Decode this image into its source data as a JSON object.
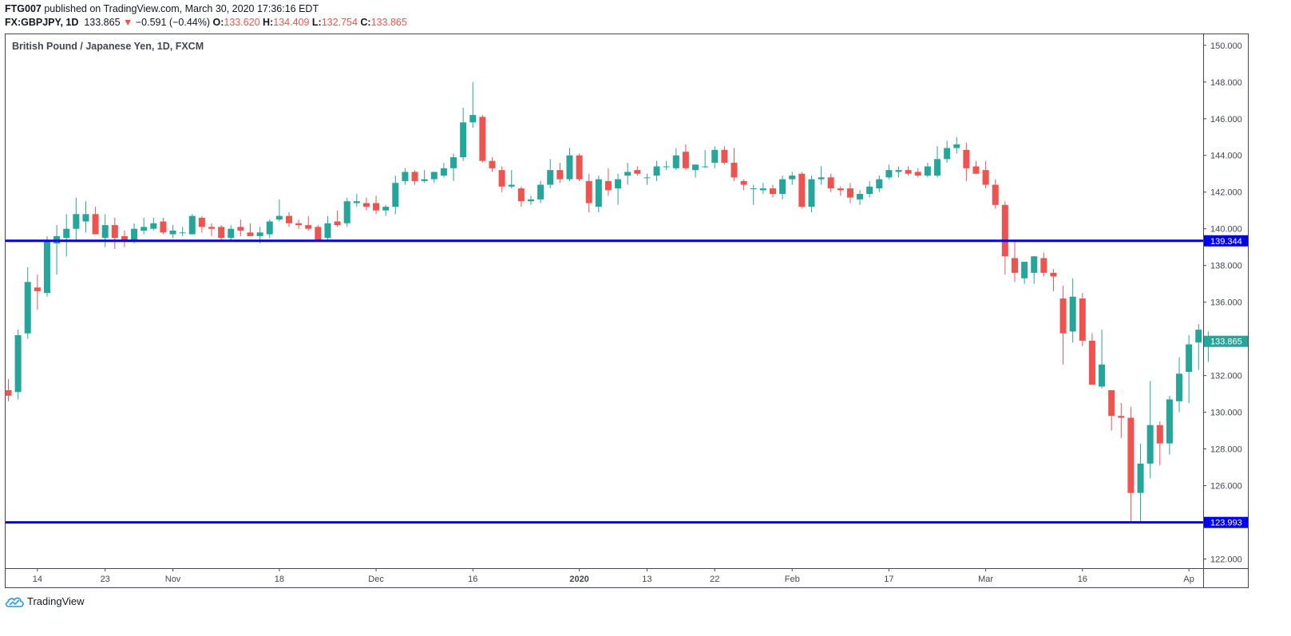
{
  "header": {
    "author": "FTG007",
    "published_text": "published on TradingView.com, March 30, 2020 17:36:16 EDT",
    "symbol": "FX:GBPJPY, 1D",
    "last": "133.865",
    "change_arrow": "▼",
    "change": "−0.591 (−0.44%)",
    "o_label": "O:",
    "o_value": "133.620",
    "h_label": "H:",
    "h_value": "134.409",
    "l_label": "L:",
    "l_value": "132.754",
    "c_label": "C:",
    "c_value": "133.865"
  },
  "footer": {
    "brand": "TradingView",
    "logo_icon": "tradingview-cloud-icon"
  },
  "colors": {
    "up": "#26a69a",
    "down": "#ef5350",
    "level_line": "#0000ee",
    "axis_text": "#434651"
  },
  "chart_data": {
    "type": "candlestick",
    "title": "British Pound / Japanese Yen, 1D, FXCM",
    "ylim": [
      121.5,
      150.6
    ],
    "y_ticks": [
      "122.000",
      "124.000",
      "126.000",
      "128.000",
      "130.000",
      "132.000",
      "134.000",
      "136.000",
      "138.000",
      "140.000",
      "142.000",
      "144.000",
      "146.000",
      "148.000",
      "150.000"
    ],
    "x_labels": [
      {
        "label": "14",
        "index": 3
      },
      {
        "label": "23",
        "index": 10
      },
      {
        "label": "Nov",
        "index": 17
      },
      {
        "label": "18",
        "index": 28
      },
      {
        "label": "Dec",
        "index": 38
      },
      {
        "label": "16",
        "index": 48
      },
      {
        "label": "2020",
        "index": 59,
        "bold": true
      },
      {
        "label": "13",
        "index": 66
      },
      {
        "label": "22",
        "index": 73
      },
      {
        "label": "Feb",
        "index": 81
      },
      {
        "label": "17",
        "index": 91
      },
      {
        "label": "Mar",
        "index": 101
      },
      {
        "label": "16",
        "index": 111
      },
      {
        "label": "Ap",
        "index": 122
      }
    ],
    "levels": [
      {
        "value": 139.344,
        "label": "139.344"
      },
      {
        "value": 123.993,
        "label": "123.993"
      }
    ],
    "last_price": {
      "value": 133.865,
      "label": "133.865"
    },
    "candles": [
      [
        131.2,
        131.8,
        130.6,
        130.9
      ],
      [
        131.1,
        134.5,
        130.7,
        134.2
      ],
      [
        134.3,
        137.9,
        134.0,
        137.1
      ],
      [
        136.8,
        137.5,
        135.6,
        136.6
      ],
      [
        136.5,
        139.6,
        136.3,
        139.3
      ],
      [
        139.2,
        140.2,
        137.5,
        139.6
      ],
      [
        139.5,
        140.8,
        138.5,
        140.0
      ],
      [
        140.0,
        141.7,
        139.3,
        140.8
      ],
      [
        140.4,
        141.5,
        139.8,
        140.8
      ],
      [
        140.8,
        141.2,
        139.7,
        139.7
      ],
      [
        139.5,
        140.8,
        139.0,
        140.2
      ],
      [
        140.2,
        140.6,
        138.9,
        139.5
      ],
      [
        139.6,
        139.9,
        139.0,
        139.3
      ],
      [
        139.3,
        140.3,
        139.2,
        140.0
      ],
      [
        139.9,
        140.6,
        139.7,
        140.1
      ],
      [
        140.0,
        140.6,
        139.9,
        140.3
      ],
      [
        140.4,
        140.6,
        139.7,
        139.8
      ],
      [
        139.7,
        140.2,
        139.5,
        139.9
      ],
      [
        139.8,
        140.1,
        139.6,
        139.8
      ],
      [
        139.7,
        140.8,
        139.7,
        140.7
      ],
      [
        140.6,
        140.7,
        139.8,
        140.1
      ],
      [
        140.1,
        140.3,
        139.6,
        140.0
      ],
      [
        140.1,
        140.2,
        139.4,
        139.5
      ],
      [
        139.5,
        140.2,
        139.4,
        140.0
      ],
      [
        140.1,
        140.5,
        139.6,
        139.9
      ],
      [
        139.8,
        140.3,
        139.6,
        139.6
      ],
      [
        139.6,
        140.1,
        139.2,
        139.8
      ],
      [
        139.7,
        140.5,
        139.5,
        140.4
      ],
      [
        140.5,
        141.6,
        140.4,
        140.7
      ],
      [
        140.7,
        140.9,
        140.1,
        140.3
      ],
      [
        140.3,
        140.5,
        140.0,
        140.2
      ],
      [
        140.2,
        140.7,
        139.9,
        140.0
      ],
      [
        140.1,
        140.2,
        139.3,
        139.4
      ],
      [
        139.5,
        140.7,
        139.4,
        140.3
      ],
      [
        140.4,
        141.0,
        140.1,
        140.2
      ],
      [
        140.3,
        141.7,
        140.1,
        141.5
      ],
      [
        141.4,
        141.9,
        141.2,
        141.5
      ],
      [
        141.4,
        141.7,
        141.0,
        141.2
      ],
      [
        141.4,
        141.8,
        140.8,
        141.0
      ],
      [
        141.0,
        141.3,
        140.7,
        141.2
      ],
      [
        141.2,
        142.9,
        140.8,
        142.5
      ],
      [
        142.6,
        143.3,
        142.4,
        143.1
      ],
      [
        143.1,
        143.2,
        142.4,
        142.6
      ],
      [
        142.6,
        143.2,
        142.5,
        142.7
      ],
      [
        142.7,
        143.1,
        142.5,
        143.1
      ],
      [
        142.9,
        143.6,
        142.8,
        143.3
      ],
      [
        143.3,
        144.1,
        142.6,
        143.9
      ],
      [
        143.9,
        146.6,
        143.7,
        145.8
      ],
      [
        145.8,
        148.0,
        145.5,
        146.2
      ],
      [
        146.1,
        146.2,
        143.6,
        143.7
      ],
      [
        143.7,
        143.9,
        143.1,
        143.3
      ],
      [
        143.2,
        143.4,
        142.0,
        142.3
      ],
      [
        142.3,
        143.2,
        142.2,
        142.4
      ],
      [
        142.2,
        142.3,
        141.2,
        141.5
      ],
      [
        141.5,
        141.8,
        141.3,
        141.6
      ],
      [
        141.6,
        142.6,
        141.4,
        142.4
      ],
      [
        142.4,
        143.8,
        142.2,
        143.2
      ],
      [
        143.2,
        143.6,
        142.5,
        142.7
      ],
      [
        142.7,
        144.4,
        142.6,
        144.0
      ],
      [
        144.0,
        144.1,
        142.6,
        142.7
      ],
      [
        142.6,
        143.0,
        140.9,
        141.4
      ],
      [
        141.2,
        142.9,
        140.9,
        142.7
      ],
      [
        142.6,
        143.3,
        141.8,
        142.1
      ],
      [
        142.2,
        143.0,
        141.3,
        142.7
      ],
      [
        142.9,
        143.6,
        142.4,
        143.1
      ],
      [
        143.2,
        143.4,
        142.9,
        143.0
      ],
      [
        142.8,
        143.0,
        142.4,
        142.8
      ],
      [
        142.9,
        143.7,
        142.6,
        143.4
      ],
      [
        143.4,
        143.7,
        143.2,
        143.4
      ],
      [
        143.3,
        144.4,
        143.2,
        144.0
      ],
      [
        144.2,
        144.6,
        143.2,
        143.3
      ],
      [
        143.2,
        143.5,
        142.8,
        143.5
      ],
      [
        143.4,
        144.3,
        143.3,
        143.4
      ],
      [
        143.6,
        144.5,
        143.3,
        144.3
      ],
      [
        144.3,
        144.5,
        143.5,
        143.6
      ],
      [
        143.6,
        144.4,
        142.6,
        142.8
      ],
      [
        142.6,
        142.7,
        142.1,
        142.4
      ],
      [
        142.2,
        142.4,
        141.3,
        142.2
      ],
      [
        142.1,
        142.5,
        141.9,
        142.2
      ],
      [
        142.2,
        142.4,
        141.7,
        141.9
      ],
      [
        141.9,
        142.9,
        141.6,
        142.7
      ],
      [
        142.7,
        143.1,
        142.4,
        142.9
      ],
      [
        143.0,
        143.1,
        141.1,
        141.2
      ],
      [
        141.2,
        142.9,
        140.9,
        142.7
      ],
      [
        142.7,
        143.4,
        142.4,
        142.8
      ],
      [
        142.8,
        143.0,
        142.0,
        142.2
      ],
      [
        142.2,
        142.3,
        141.8,
        142.1
      ],
      [
        142.2,
        142.5,
        141.4,
        141.7
      ],
      [
        141.6,
        142.1,
        141.3,
        141.9
      ],
      [
        141.9,
        142.6,
        141.7,
        142.3
      ],
      [
        142.2,
        142.9,
        142.0,
        142.7
      ],
      [
        142.8,
        143.5,
        142.7,
        143.2
      ],
      [
        143.1,
        143.4,
        142.8,
        143.2
      ],
      [
        143.2,
        143.4,
        142.9,
        143.0
      ],
      [
        143.1,
        143.3,
        142.8,
        142.9
      ],
      [
        142.9,
        143.6,
        142.8,
        143.4
      ],
      [
        142.9,
        144.5,
        142.8,
        143.8
      ],
      [
        143.8,
        144.8,
        143.6,
        144.4
      ],
      [
        144.4,
        145.0,
        144.1,
        144.6
      ],
      [
        144.3,
        144.7,
        142.6,
        143.3
      ],
      [
        143.4,
        143.7,
        143.0,
        143.0
      ],
      [
        143.2,
        143.7,
        142.2,
        142.4
      ],
      [
        142.4,
        142.7,
        141.1,
        141.3
      ],
      [
        141.3,
        141.5,
        137.5,
        138.5
      ],
      [
        138.4,
        139.4,
        137.1,
        137.6
      ],
      [
        137.3,
        138.0,
        137.0,
        138.2
      ],
      [
        137.6,
        138.5,
        137.0,
        138.5
      ],
      [
        138.4,
        138.7,
        137.4,
        137.6
      ],
      [
        137.6,
        137.8,
        136.6,
        137.4
      ],
      [
        136.2,
        136.9,
        132.6,
        134.3
      ],
      [
        134.4,
        137.3,
        133.8,
        136.3
      ],
      [
        136.2,
        136.5,
        133.6,
        133.9
      ],
      [
        133.9,
        134.3,
        131.5,
        131.5
      ],
      [
        131.4,
        134.5,
        131.3,
        132.6
      ],
      [
        131.2,
        131.2,
        129.0,
        129.8
      ],
      [
        129.8,
        130.5,
        128.6,
        129.7
      ],
      [
        129.7,
        130.3,
        123.993,
        125.6
      ],
      [
        125.6,
        128.3,
        123.993,
        127.2
      ],
      [
        127.2,
        131.7,
        126.4,
        129.3
      ],
      [
        129.3,
        129.5,
        127.1,
        128.3
      ],
      [
        128.3,
        130.9,
        127.7,
        130.7
      ],
      [
        130.6,
        133.0,
        130.0,
        132.1
      ],
      [
        132.2,
        134.2,
        130.5,
        133.7
      ],
      [
        133.8,
        134.8,
        132.3,
        134.5
      ],
      [
        133.62,
        134.409,
        132.754,
        133.865
      ]
    ]
  }
}
